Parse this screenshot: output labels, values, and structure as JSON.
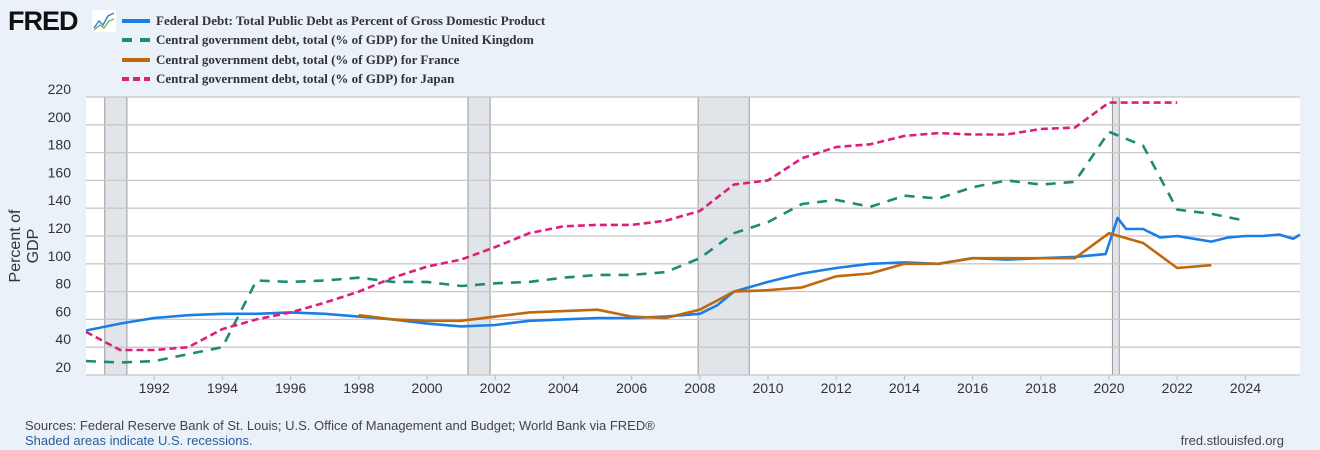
{
  "logo": "FRED",
  "source_line": "Sources: Federal Reserve Bank of St. Louis; U.S. Office of Management and Budget; World Bank via FRED®",
  "recession_note": "Shaded areas indicate U.S. recessions.",
  "site": "fred.stlouisfed.org",
  "chart_data": {
    "type": "line",
    "title": "",
    "xlabel": "",
    "ylabel": "Percent of GDP",
    "xlim": [
      1990,
      2025.6
    ],
    "ylim": [
      20,
      220
    ],
    "yticks": [
      20,
      40,
      60,
      80,
      100,
      120,
      140,
      160,
      180,
      200,
      220
    ],
    "xticks": [
      1992,
      1994,
      1996,
      1998,
      2000,
      2002,
      2004,
      2006,
      2008,
      2010,
      2012,
      2014,
      2016,
      2018,
      2020,
      2022,
      2024
    ],
    "grid": true,
    "legend_position": "top-left",
    "recessions": [
      [
        1990.55,
        1991.2
      ],
      [
        2001.2,
        2001.85
      ],
      [
        2007.95,
        2009.45
      ],
      [
        2020.1,
        2020.3
      ]
    ],
    "series": [
      {
        "name": "Federal Debt: Total Public Debt as Percent of Gross Domestic Product",
        "color": "#1a7ee6",
        "dash": "solid",
        "x": [
          1990,
          1991,
          1992,
          1993,
          1994,
          1995,
          1996,
          1997,
          1998,
          1999,
          2000,
          2001,
          2002,
          2003,
          2004,
          2005,
          2006,
          2007,
          2008,
          2008.5,
          2009,
          2010,
          2011,
          2012,
          2013,
          2014,
          2015,
          2016,
          2017,
          2018,
          2019,
          2019.9,
          2020.25,
          2020.5,
          2021,
          2021.5,
          2022,
          2022.5,
          2023,
          2023.5,
          2024,
          2024.5,
          2025,
          2025.4,
          2025.6
        ],
        "y": [
          52,
          57,
          61,
          63,
          64,
          64,
          65,
          64,
          62,
          60,
          57,
          55,
          56,
          59,
          60,
          61,
          61,
          62,
          64,
          70,
          80,
          87,
          93,
          97,
          100,
          101,
          100,
          104,
          103,
          104,
          105,
          107,
          133,
          125,
          125,
          119,
          120,
          118,
          116,
          119,
          120,
          120,
          121,
          118,
          121
        ]
      },
      {
        "name": "Central government debt, total (% of GDP) for the United Kingdom",
        "color": "#1d8a78",
        "dash": "10,8",
        "x": [
          1990,
          1991,
          1992,
          1993,
          1994,
          1995,
          1996,
          1997,
          1998,
          1999,
          2000,
          2001,
          2002,
          2003,
          2004,
          2005,
          2006,
          2007,
          2008,
          2009,
          2010,
          2011,
          2012,
          2013,
          2014,
          2015,
          2016,
          2017,
          2018,
          2019,
          2020,
          2021,
          2022,
          2023,
          2024
        ],
        "y": [
          30,
          29,
          30,
          35,
          40,
          88,
          87,
          88,
          90,
          87,
          87,
          84,
          86,
          87,
          90,
          92,
          92,
          94,
          104,
          122,
          130,
          143,
          146,
          141,
          149,
          147,
          155,
          160,
          157,
          159,
          195,
          185,
          139,
          136,
          131
        ]
      },
      {
        "name": "Central government debt, total (% of GDP) for France",
        "color": "#c0680e",
        "dash": "solid",
        "x": [
          1998,
          1999,
          2000,
          2001,
          2002,
          2003,
          2004,
          2005,
          2006,
          2007,
          2008,
          2009,
          2010,
          2011,
          2012,
          2013,
          2014,
          2015,
          2016,
          2017,
          2018,
          2019,
          2020,
          2021,
          2022,
          2023
        ],
        "y": [
          63,
          60,
          59,
          59,
          62,
          65,
          66,
          67,
          62,
          61,
          67,
          80,
          81,
          83,
          91,
          93,
          100,
          100,
          104,
          104,
          104,
          104,
          122,
          115,
          97,
          99
        ]
      },
      {
        "name": "Central government debt, total (% of GDP) for Japan",
        "color": "#dd1f7a",
        "dash": "7,4",
        "x": [
          1990,
          1991,
          1992,
          1993,
          1994,
          1995,
          1996,
          1997,
          1998,
          1999,
          2000,
          2001,
          2002,
          2003,
          2004,
          2005,
          2006,
          2007,
          2008,
          2009,
          2010,
          2011,
          2012,
          2013,
          2014,
          2015,
          2016,
          2017,
          2018,
          2019,
          2020,
          2021,
          2022
        ],
        "y": [
          51,
          38,
          38,
          40,
          53,
          60,
          65,
          72,
          80,
          90,
          98,
          103,
          112,
          122,
          127,
          128,
          128,
          131,
          138,
          157,
          160,
          176,
          184,
          186,
          192,
          194,
          193,
          193,
          197,
          198,
          216,
          216,
          216
        ]
      }
    ]
  }
}
